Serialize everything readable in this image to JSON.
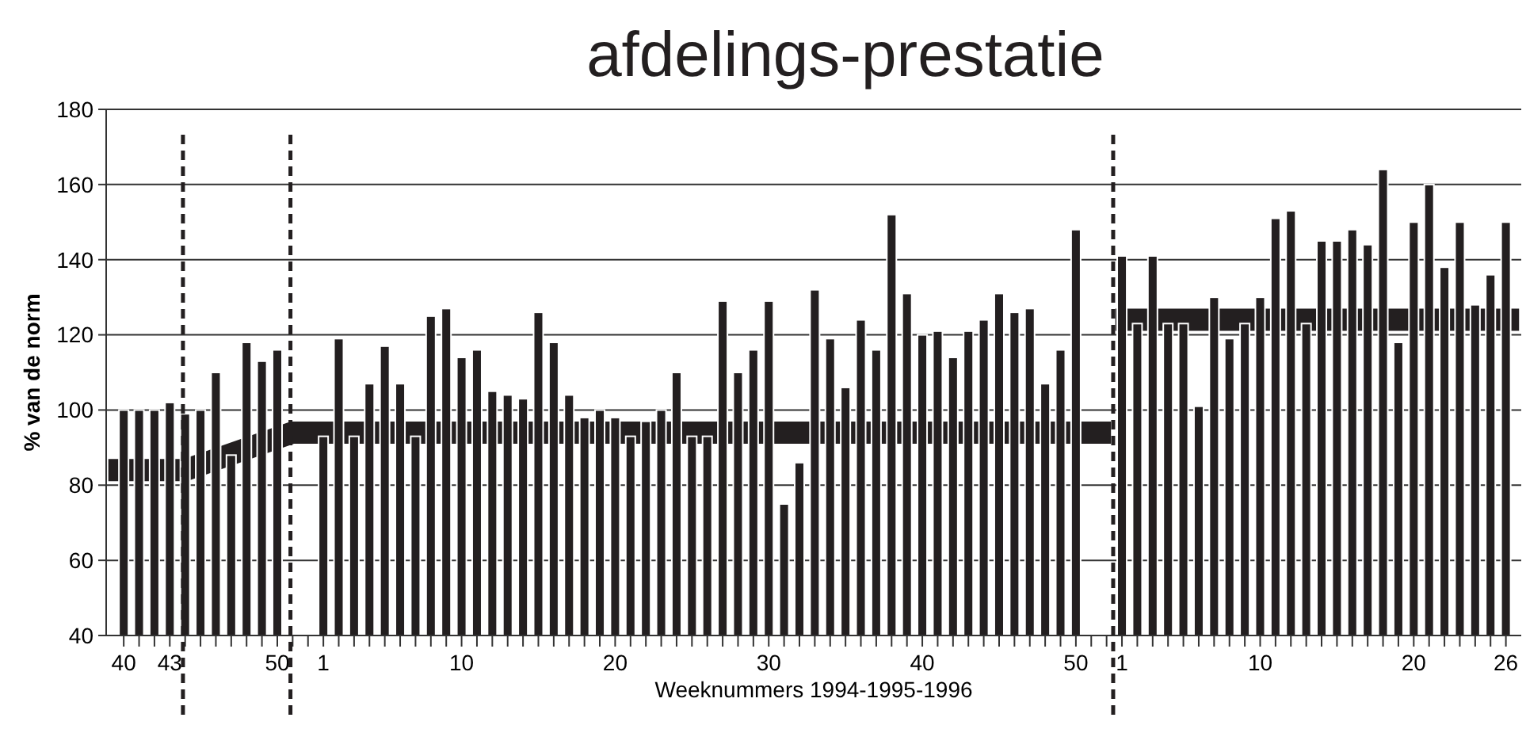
{
  "chart_data": {
    "type": "bar",
    "title": "afdelings-prestatie",
    "xlabel": "Weeknummers 1994-1995-1996",
    "ylabel": "% van de norm",
    "x": [
      "1994-10-03",
      "1994-10-10",
      "1994-10-17",
      "1994-10-24",
      "1994-10-31",
      "1994-11-07",
      "1994-11-14",
      "1994-11-21",
      "1994-11-28",
      "1994-12-05",
      "1994-12-12",
      "1995-01-02",
      "1995-01-09",
      "1995-01-16",
      "1995-01-23",
      "1995-01-30",
      "1995-02-06",
      "1995-02-13",
      "1995-02-20",
      "1995-02-27",
      "1995-03-06",
      "1995-03-13",
      "1995-03-20",
      "1995-03-27",
      "1995-04-03",
      "1995-04-10",
      "1995-04-17",
      "1995-04-24",
      "1995-05-01",
      "1995-05-08",
      "1995-05-15",
      "1995-05-22",
      "1995-05-29",
      "1995-06-05",
      "1995-06-12",
      "1995-06-19",
      "1995-06-26",
      "1995-07-03",
      "1995-07-10",
      "1995-07-17",
      "1995-07-24",
      "1995-07-31",
      "1995-08-07",
      "1995-08-14",
      "1995-08-21",
      "1995-08-28",
      "1995-09-04",
      "1995-09-11",
      "1995-09-18",
      "1995-09-25",
      "1995-10-02",
      "1995-10-09",
      "1995-10-16",
      "1995-10-23",
      "1995-10-30",
      "1995-11-06",
      "1995-11-13",
      "1995-11-20",
      "1995-11-27",
      "1995-12-04",
      "1995-12-11",
      "1996-01-01",
      "1996-01-08",
      "1996-01-15",
      "1996-01-22",
      "1996-01-29",
      "1996-02-05",
      "1996-02-12",
      "1996-02-19",
      "1996-02-26",
      "1996-03-04",
      "1996-03-11",
      "1996-03-18",
      "1996-03-25",
      "1996-04-01",
      "1996-04-08",
      "1996-04-15",
      "1996-04-22",
      "1996-04-29",
      "1996-05-06",
      "1996-05-13",
      "1996-05-20",
      "1996-05-27",
      "1996-06-03",
      "1996-06-10",
      "1996-06-17",
      "1996-06-24"
    ],
    "series": [
      {
        "color": "#231f20",
        "values": [
          100,
          100,
          100,
          102,
          99,
          100,
          110,
          88,
          118,
          113,
          116,
          93,
          119,
          93,
          107,
          117,
          107,
          93,
          125,
          127,
          114,
          116,
          105,
          104,
          103,
          126,
          118,
          104,
          98,
          100,
          98,
          93,
          97,
          100,
          110,
          93,
          93,
          129,
          110,
          116,
          129,
          75,
          86,
          132,
          119,
          106,
          124,
          116,
          152,
          131,
          120,
          121,
          114,
          121,
          124,
          131,
          126,
          127,
          107,
          116,
          148,
          141,
          123,
          141,
          123,
          123,
          101,
          130,
          119,
          123,
          130,
          151,
          153,
          123,
          145,
          145,
          148,
          144,
          164,
          118,
          150,
          160,
          138,
          150,
          128,
          136,
          150
        ]
      },
      {
        "type": "line",
        "color": "#231f20",
        "x": [
          "1994-09-26",
          "1994-10-31",
          "1994-12-19",
          "1995-12-27"
        ],
        "values": [
          84,
          84,
          94,
          94
        ]
      },
      {
        "type": "line",
        "color": "#231f20",
        "x": [
          "1995-12-29",
          "1996-06-30"
        ],
        "values": [
          124,
          124
        ]
      }
    ],
    "xlim": [
      "1994-09-25",
      "1996-07-01"
    ],
    "xticks": [
      {
        "value": "1994-10-03",
        "label": "40"
      },
      {
        "value": "1994-10-10",
        "label": null
      },
      {
        "value": "1994-10-17",
        "label": null
      },
      {
        "value": "1994-10-24",
        "label": "43"
      },
      {
        "value": "1994-10-31",
        "label": null
      },
      {
        "value": "1994-11-07",
        "label": null
      },
      {
        "value": "1994-11-14",
        "label": null
      },
      {
        "value": "1994-11-21",
        "label": null
      },
      {
        "value": "1994-11-28",
        "label": null
      },
      {
        "value": "1994-12-05",
        "label": null
      },
      {
        "value": "1994-12-12",
        "label": "50"
      },
      {
        "value": "1994-12-19",
        "label": null
      },
      {
        "value": "1994-12-26",
        "label": null
      },
      {
        "value": "1995-01-02",
        "label": "1"
      },
      {
        "value": "1995-01-09",
        "label": null
      },
      {
        "value": "1995-01-16",
        "label": null
      },
      {
        "value": "1995-01-23",
        "label": null
      },
      {
        "value": "1995-01-30",
        "label": null
      },
      {
        "value": "1995-02-06",
        "label": null
      },
      {
        "value": "1995-02-13",
        "label": null
      },
      {
        "value": "1995-02-20",
        "label": null
      },
      {
        "value": "1995-02-27",
        "label": null
      },
      {
        "value": "1995-03-06",
        "label": "10"
      },
      {
        "value": "1995-03-13",
        "label": null
      },
      {
        "value": "1995-03-20",
        "label": null
      },
      {
        "value": "1995-03-27",
        "label": null
      },
      {
        "value": "1995-04-03",
        "label": null
      },
      {
        "value": "1995-04-10",
        "label": null
      },
      {
        "value": "1995-04-17",
        "label": null
      },
      {
        "value": "1995-04-24",
        "label": null
      },
      {
        "value": "1995-05-01",
        "label": null
      },
      {
        "value": "1995-05-08",
        "label": null
      },
      {
        "value": "1995-05-15",
        "label": "20"
      },
      {
        "value": "1995-05-22",
        "label": null
      },
      {
        "value": "1995-05-29",
        "label": null
      },
      {
        "value": "1995-06-05",
        "label": null
      },
      {
        "value": "1995-06-12",
        "label": null
      },
      {
        "value": "1995-06-19",
        "label": null
      },
      {
        "value": "1995-06-26",
        "label": null
      },
      {
        "value": "1995-07-03",
        "label": null
      },
      {
        "value": "1995-07-10",
        "label": null
      },
      {
        "value": "1995-07-17",
        "label": null
      },
      {
        "value": "1995-07-24",
        "label": "30"
      },
      {
        "value": "1995-07-31",
        "label": null
      },
      {
        "value": "1995-08-07",
        "label": null
      },
      {
        "value": "1995-08-14",
        "label": null
      },
      {
        "value": "1995-08-21",
        "label": null
      },
      {
        "value": "1995-08-28",
        "label": null
      },
      {
        "value": "1995-09-04",
        "label": null
      },
      {
        "value": "1995-09-11",
        "label": null
      },
      {
        "value": "1995-09-18",
        "label": null
      },
      {
        "value": "1995-09-25",
        "label": null
      },
      {
        "value": "1995-10-02",
        "label": "40"
      },
      {
        "value": "1995-10-09",
        "label": null
      },
      {
        "value": "1995-10-16",
        "label": null
      },
      {
        "value": "1995-10-23",
        "label": null
      },
      {
        "value": "1995-10-30",
        "label": null
      },
      {
        "value": "1995-11-06",
        "label": null
      },
      {
        "value": "1995-11-13",
        "label": null
      },
      {
        "value": "1995-11-20",
        "label": null
      },
      {
        "value": "1995-11-27",
        "label": null
      },
      {
        "value": "1995-12-04",
        "label": null
      },
      {
        "value": "1995-12-11",
        "label": "50"
      },
      {
        "value": "1995-12-18",
        "label": null
      },
      {
        "value": "1995-12-25",
        "label": null
      },
      {
        "value": "1996-01-01",
        "label": "1"
      },
      {
        "value": "1996-01-08",
        "label": null
      },
      {
        "value": "1996-01-15",
        "label": null
      },
      {
        "value": "1996-01-22",
        "label": null
      },
      {
        "value": "1996-01-29",
        "label": null
      },
      {
        "value": "1996-02-05",
        "label": null
      },
      {
        "value": "1996-02-12",
        "label": null
      },
      {
        "value": "1996-02-19",
        "label": null
      },
      {
        "value": "1996-02-26",
        "label": null
      },
      {
        "value": "1996-03-04",
        "label": "10"
      },
      {
        "value": "1996-03-11",
        "label": null
      },
      {
        "value": "1996-03-18",
        "label": null
      },
      {
        "value": "1996-03-25",
        "label": null
      },
      {
        "value": "1996-04-01",
        "label": null
      },
      {
        "value": "1996-04-08",
        "label": null
      },
      {
        "value": "1996-04-15",
        "label": null
      },
      {
        "value": "1996-04-22",
        "label": null
      },
      {
        "value": "1996-04-29",
        "label": null
      },
      {
        "value": "1996-05-06",
        "label": null
      },
      {
        "value": "1996-05-13",
        "label": "20"
      },
      {
        "value": "1996-05-20",
        "label": null
      },
      {
        "value": "1996-05-27",
        "label": null
      },
      {
        "value": "1996-06-03",
        "label": null
      },
      {
        "value": "1996-06-10",
        "label": null
      },
      {
        "value": "1996-06-17",
        "label": null
      },
      {
        "value": "1996-06-24",
        "label": "26"
      }
    ],
    "ylim": [
      40,
      180
    ],
    "yticks": [
      40,
      60,
      80,
      100,
      120,
      140,
      160,
      180
    ],
    "grid": "y",
    "ref_lines": [
      {
        "axis": "x",
        "value": "1994-10-30",
        "line_style": "dashed",
        "color": "#231f20"
      },
      {
        "axis": "x",
        "value": "1994-12-18",
        "line_style": "dashed",
        "color": "#231f20"
      },
      {
        "axis": "x",
        "value": "1995-12-28",
        "line_style": "dashed",
        "color": "#231f20"
      }
    ]
  }
}
